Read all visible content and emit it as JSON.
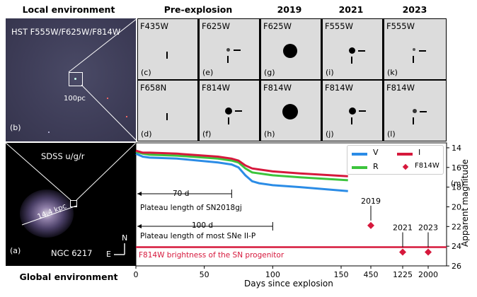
{
  "headers": {
    "local": "Local environment",
    "pre": "Pre-explosion",
    "y2019": "2019",
    "y2021": "2021",
    "y2023": "2023",
    "global": "Global environment"
  },
  "panel_b": {
    "filters": "HST F555W/F625W/F814W",
    "scale": "100pc",
    "letter": "(b)"
  },
  "panel_a": {
    "survey": "SDSS u/g/r",
    "distance": "14.4 kpc",
    "galaxy": "NGC 6217",
    "letter": "(a)",
    "north": "N",
    "east": "E"
  },
  "cutouts": [
    {
      "filter": "F435W",
      "letter": "(c)"
    },
    {
      "filter": "F625W",
      "letter": "(e)"
    },
    {
      "filter": "F625W",
      "letter": "(g)"
    },
    {
      "filter": "F555W",
      "letter": "(i)"
    },
    {
      "filter": "F555W",
      "letter": "(k)"
    },
    {
      "filter": "F658N",
      "letter": "(d)"
    },
    {
      "filter": "F814W",
      "letter": "(f)"
    },
    {
      "filter": "F814W",
      "letter": "(h)"
    },
    {
      "filter": "F814W",
      "letter": "(j)"
    },
    {
      "filter": "F814W",
      "letter": "(l)"
    }
  ],
  "annotations": {
    "plateau_2018gj_len": "70 d",
    "plateau_2018gj": "Plateau length of SN2018gj",
    "plateau_most_len": "100 d",
    "plateau_most": "Plateau length of most SNe II-P",
    "progenitor": "F814W brightness of the SN progenitor",
    "m_label": "(m)"
  },
  "colors": {
    "V": "#2b8ce6",
    "R": "#3cc43c",
    "I": "#d6183c",
    "F814W": "#d6183c",
    "progenitor_line": "#d6183c"
  },
  "chart_data": {
    "type": "line",
    "xlabel": "Days since explosion",
    "ylabel": "Apparent magnitude",
    "ylim": [
      26,
      13.5
    ],
    "yticks": [
      14,
      16,
      18,
      20,
      22,
      24,
      26
    ],
    "xticks": [
      "0",
      "50",
      "100",
      "150",
      "450",
      "1225",
      "2000"
    ],
    "legend": {
      "placement": "top-right"
    },
    "series": [
      {
        "name": "V",
        "x": [
          0,
          5,
          10,
          30,
          60,
          70,
          75,
          80,
          85,
          90,
          100,
          120,
          155
        ],
        "y": [
          14.6,
          14.9,
          15.0,
          15.1,
          15.5,
          15.7,
          16.0,
          16.8,
          17.4,
          17.6,
          17.8,
          18.0,
          18.4
        ]
      },
      {
        "name": "R",
        "x": [
          0,
          5,
          10,
          30,
          60,
          70,
          75,
          80,
          85,
          90,
          100,
          120,
          155
        ],
        "y": [
          14.4,
          14.6,
          14.7,
          14.8,
          15.1,
          15.3,
          15.5,
          16.1,
          16.5,
          16.6,
          16.8,
          17.0,
          17.3
        ]
      },
      {
        "name": "I",
        "x": [
          0,
          5,
          10,
          30,
          60,
          70,
          75,
          80,
          85,
          90,
          100,
          120,
          155
        ],
        "y": [
          14.3,
          14.5,
          14.5,
          14.6,
          14.9,
          15.1,
          15.3,
          15.8,
          16.1,
          16.2,
          16.4,
          16.6,
          16.9
        ]
      },
      {
        "name": "F814W",
        "points": [
          {
            "x": "450",
            "y": 21.9,
            "label": "2019"
          },
          {
            "x": "1225",
            "y": 24.6,
            "label": "2021"
          },
          {
            "x": "2000",
            "y": 24.6,
            "label": "2023"
          }
        ]
      }
    ],
    "progenitor_mag": 24.1,
    "plateau_2018gj_days": 70,
    "plateau_most_days": 100
  }
}
